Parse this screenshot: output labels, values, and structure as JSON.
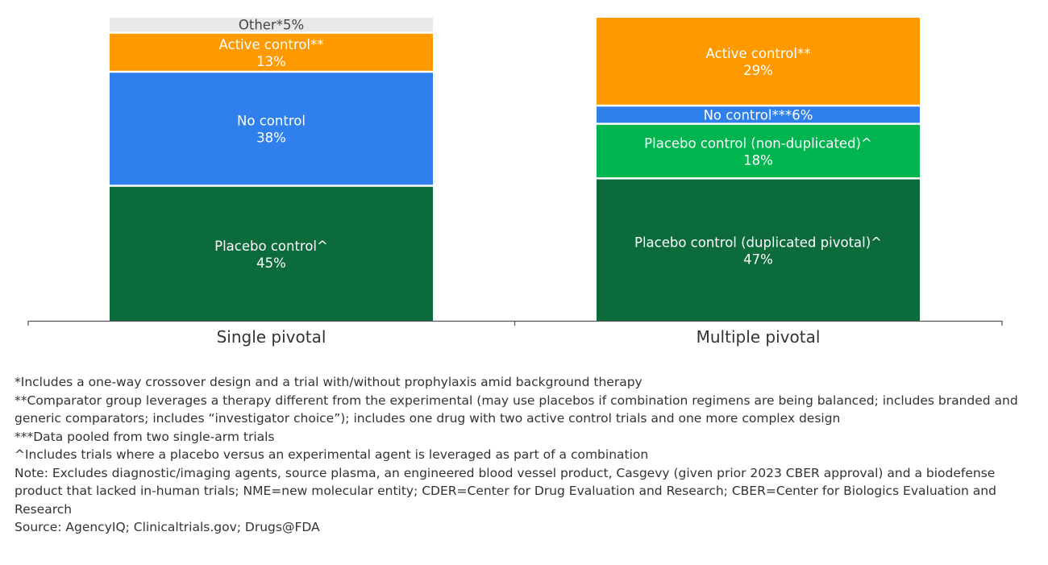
{
  "chart_data": {
    "type": "bar",
    "stacked": true,
    "normalized_percent": true,
    "categories": [
      "Single pivotal",
      "Multiple pivotal"
    ],
    "ylim": [
      0,
      100
    ],
    "title": "",
    "xlabel": "",
    "ylabel": "",
    "grid": false,
    "legend": "none",
    "stacks": [
      {
        "category": "Single pivotal",
        "segments": [
          {
            "label": "Placebo control^",
            "value": 45,
            "value_text": "45%",
            "color": "#0b6b3a",
            "text_color": "#ffffff",
            "label_style": "two-line"
          },
          {
            "label": "No control",
            "value": 38,
            "value_text": "38%",
            "color": "#2f80ed",
            "text_color": "#ffffff",
            "label_style": "two-line"
          },
          {
            "label": "Active control**",
            "value": 13,
            "value_text": "13%",
            "color": "#ff9900",
            "text_color": "#ffffff",
            "label_style": "two-line"
          },
          {
            "label": "Other*",
            "value": 5,
            "value_text": "5%",
            "color": "#e8e8e8",
            "text_color": "#444444",
            "label_style": "inline"
          }
        ]
      },
      {
        "category": "Multiple pivotal",
        "segments": [
          {
            "label": "Placebo control (duplicated pivotal)^",
            "value": 47,
            "value_text": "47%",
            "color": "#0b6b3a",
            "text_color": "#ffffff",
            "label_style": "two-line"
          },
          {
            "label": "Placebo control (non-duplicated)^",
            "value": 18,
            "value_text": "18%",
            "color": "#00b54f",
            "text_color": "#ffffff",
            "label_style": "two-line"
          },
          {
            "label": "No control***",
            "value": 6,
            "value_text": "6%",
            "color": "#2f80ed",
            "text_color": "#ffffff",
            "label_style": "inline"
          },
          {
            "label": "Active control**",
            "value": 29,
            "value_text": "29%",
            "color": "#ff9900",
            "text_color": "#ffffff",
            "label_style": "two-line"
          }
        ]
      }
    ]
  },
  "footnotes": [
    "*Includes a one-way crossover design and a trial with/without prophylaxis amid background therapy",
    "**Comparator group leverages a therapy different from the experimental (may use placebos if combination regimens are being balanced; includes branded and generic comparators; includes “investigator choice”); includes one drug with two active control trials and one more complex design",
    "***Data pooled from two single-arm trials",
    "^Includes trials where a placebo versus an experimental agent is leveraged as part of a combination",
    "Note: Excludes diagnostic/imaging agents, source plasma, an engineered blood vessel product, Casgevy (given prior 2023 CBER approval) and a biodefense product that lacked in-human trials; NME=new molecular entity; CDER=Center for Drug Evaluation and Research; CBER=Center for Biologics Evaluation and Research",
    "Source: AgencyIQ; Clinicaltrials.gov; Drugs@FDA"
  ],
  "colors": {
    "axis": "#555555",
    "divider": "#ffffff"
  }
}
